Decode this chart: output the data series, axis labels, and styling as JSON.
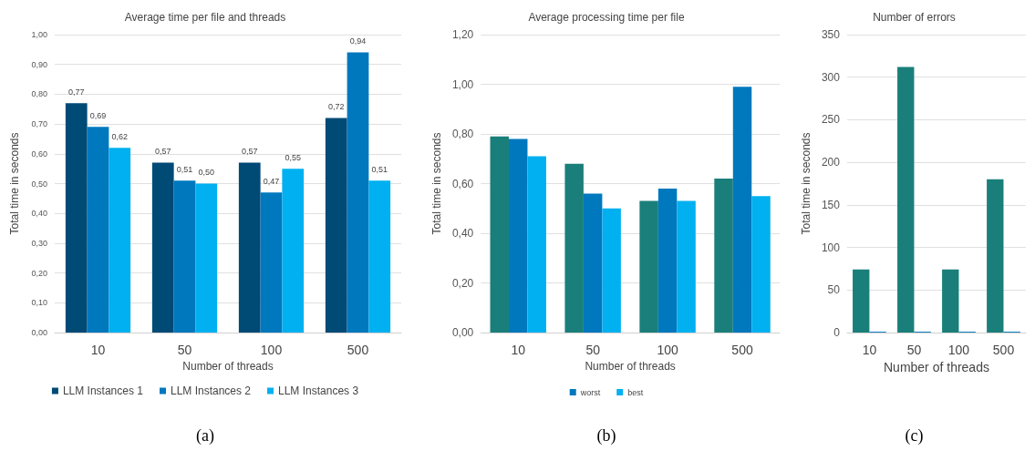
{
  "chart_data": [
    {
      "type": "bar",
      "title": "Average time per file and threads",
      "xlabel": "Number of threads",
      "ylabel": "Total time in seconds",
      "categories": [
        "10",
        "50",
        "100",
        "500"
      ],
      "series": [
        {
          "name": "LLM Instances 1",
          "color": "#004a76",
          "values": [
            0.77,
            0.57,
            0.57,
            0.72
          ],
          "value_labels": [
            "0,77",
            "0,57",
            "0,57",
            "0,72"
          ]
        },
        {
          "name": "LLM Instances 2",
          "color": "#0078be",
          "values": [
            0.69,
            0.51,
            0.47,
            0.94
          ],
          "value_labels": [
            "0,69",
            "0,51",
            "0,47",
            "0,94"
          ]
        },
        {
          "name": "LLM Instances 3",
          "color": "#00b0f0",
          "values": [
            0.62,
            0.5,
            0.55,
            0.51
          ],
          "value_labels": [
            "0,62",
            "0,50",
            "0,55",
            "0,51"
          ]
        }
      ],
      "ylim": [
        0,
        1
      ],
      "yticks": [
        {
          "value": 0,
          "label": "0,00"
        },
        {
          "value": 0.1,
          "label": "0,10"
        },
        {
          "value": 0.2,
          "label": "0,20"
        },
        {
          "value": 0.3,
          "label": "0,30"
        },
        {
          "value": 0.4,
          "label": "0,40"
        },
        {
          "value": 0.5,
          "label": "0,50"
        },
        {
          "value": 0.6,
          "label": "0,60"
        },
        {
          "value": 0.7,
          "label": "0,70"
        },
        {
          "value": 0.8,
          "label": "0,80"
        },
        {
          "value": 0.9,
          "label": "0,90"
        },
        {
          "value": 1,
          "label": "1,00"
        }
      ],
      "grid": "y",
      "legend": "bottom",
      "annotations": [
        "(a)"
      ]
    },
    {
      "type": "bar",
      "title": "Average processing time per file",
      "xlabel": "Number of threads",
      "ylabel": "Total time in seconds",
      "categories": [
        "10",
        "50",
        "100",
        "500"
      ],
      "series": [
        {
          "color": "#1a7f7a",
          "values": [
            0.79,
            0.68,
            0.53,
            0.62
          ]
        },
        {
          "name": "worst",
          "color": "#0078be",
          "values": [
            0.78,
            0.56,
            0.58,
            0.99
          ]
        },
        {
          "name": "best",
          "color": "#00b0f0",
          "values": [
            0.71,
            0.5,
            0.53,
            0.55
          ]
        }
      ],
      "ylim": [
        0,
        1.2
      ],
      "yticks": [
        {
          "value": 0,
          "label": "0,00"
        },
        {
          "value": 0.2,
          "label": "0,20"
        },
        {
          "value": 0.4,
          "label": "0,40"
        },
        {
          "value": 0.6,
          "label": "0,60"
        },
        {
          "value": 0.8,
          "label": "0,80"
        },
        {
          "value": 1,
          "label": "1,00"
        },
        {
          "value": 1.2,
          "label": "1,20"
        }
      ],
      "grid": "y",
      "legend": "bottom",
      "annotations": [
        "(b)"
      ]
    },
    {
      "type": "bar",
      "title": "Number of errors",
      "xlabel": "Number of threads",
      "ylabel": "Total time in seconds",
      "categories": [
        "10",
        "50",
        "100",
        "500"
      ],
      "series": [
        {
          "color": "#1a7f7a",
          "values": [
            74,
            312,
            74,
            180
          ]
        },
        {
          "color": "#0078be",
          "values": [
            1,
            1,
            1,
            1
          ]
        }
      ],
      "ylim": [
        0,
        350
      ],
      "yticks": [
        0,
        50,
        100,
        150,
        200,
        250,
        300,
        350
      ],
      "grid": "y",
      "annotations": [
        "(c)"
      ]
    }
  ]
}
